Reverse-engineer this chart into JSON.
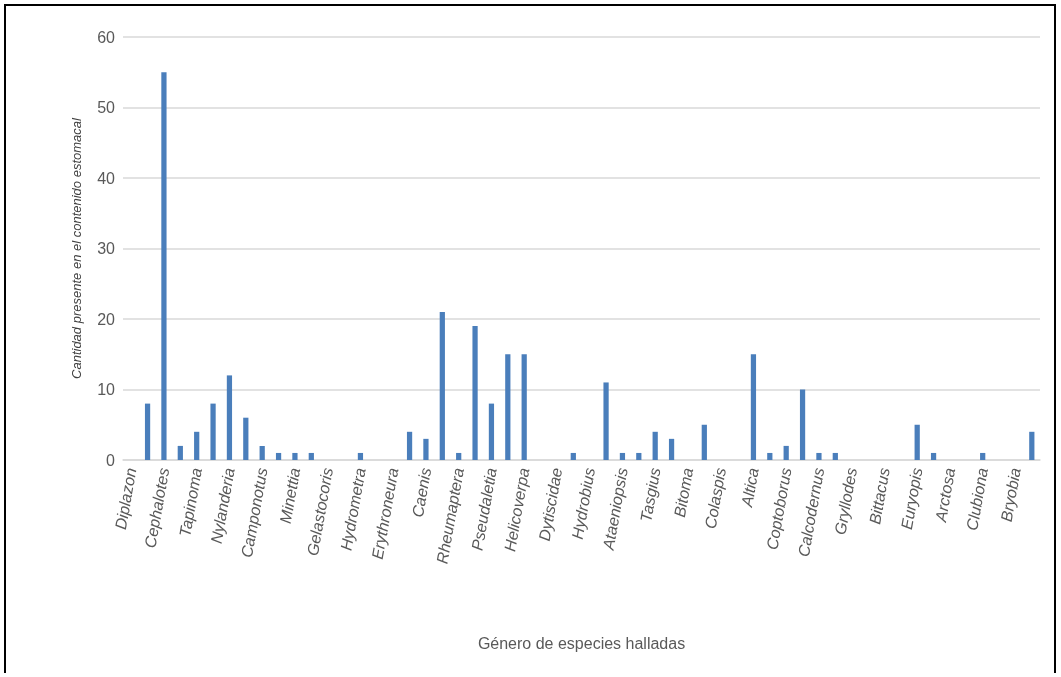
{
  "chart_data": {
    "type": "bar",
    "xlabel": "Género de especies halladas",
    "ylabel": "Cantidad presente en el contenido estomacal",
    "categories": [
      "Diplazon",
      null,
      "Cephalotes",
      null,
      "Tapinoma",
      null,
      "Nylanderia",
      null,
      "Camponotus",
      null,
      "Minettia",
      null,
      "Gelastocoris",
      null,
      "Hydrometra",
      null,
      "Erythroneura",
      null,
      "Caenis",
      null,
      "Rheumaptera",
      null,
      "Pseudaletia",
      null,
      "Helicoverpa",
      null,
      "Dytiscidae",
      null,
      "Hydrobius",
      null,
      "Ataeniopsis",
      null,
      "Tasgius",
      null,
      "Bitoma",
      null,
      "Colaspis",
      null,
      "Altica",
      null,
      "Coptoborus",
      null,
      "Calcodernus",
      null,
      "Gryllodes",
      null,
      "Bittacus",
      null,
      "Euryopis",
      null,
      "Arctosa",
      null,
      "Clubiona",
      null,
      "Bryobia",
      null
    ],
    "values": [
      0,
      8,
      55,
      2,
      4,
      8,
      12,
      6,
      2,
      1,
      1,
      1,
      0,
      0,
      1,
      0,
      0,
      4,
      3,
      21,
      1,
      19,
      8,
      15,
      15,
      0,
      0,
      1,
      0,
      11,
      1,
      1,
      4,
      3,
      0,
      5,
      0,
      0,
      15,
      1,
      2,
      10,
      1,
      1,
      0,
      0,
      0,
      0,
      5,
      1,
      0,
      0,
      1,
      0,
      0,
      4
    ],
    "color": "#4a7ebb",
    "ylim": [
      0,
      60
    ],
    "yticks": [
      0,
      10,
      20,
      30,
      40,
      50,
      60
    ],
    "grid": "y"
  }
}
